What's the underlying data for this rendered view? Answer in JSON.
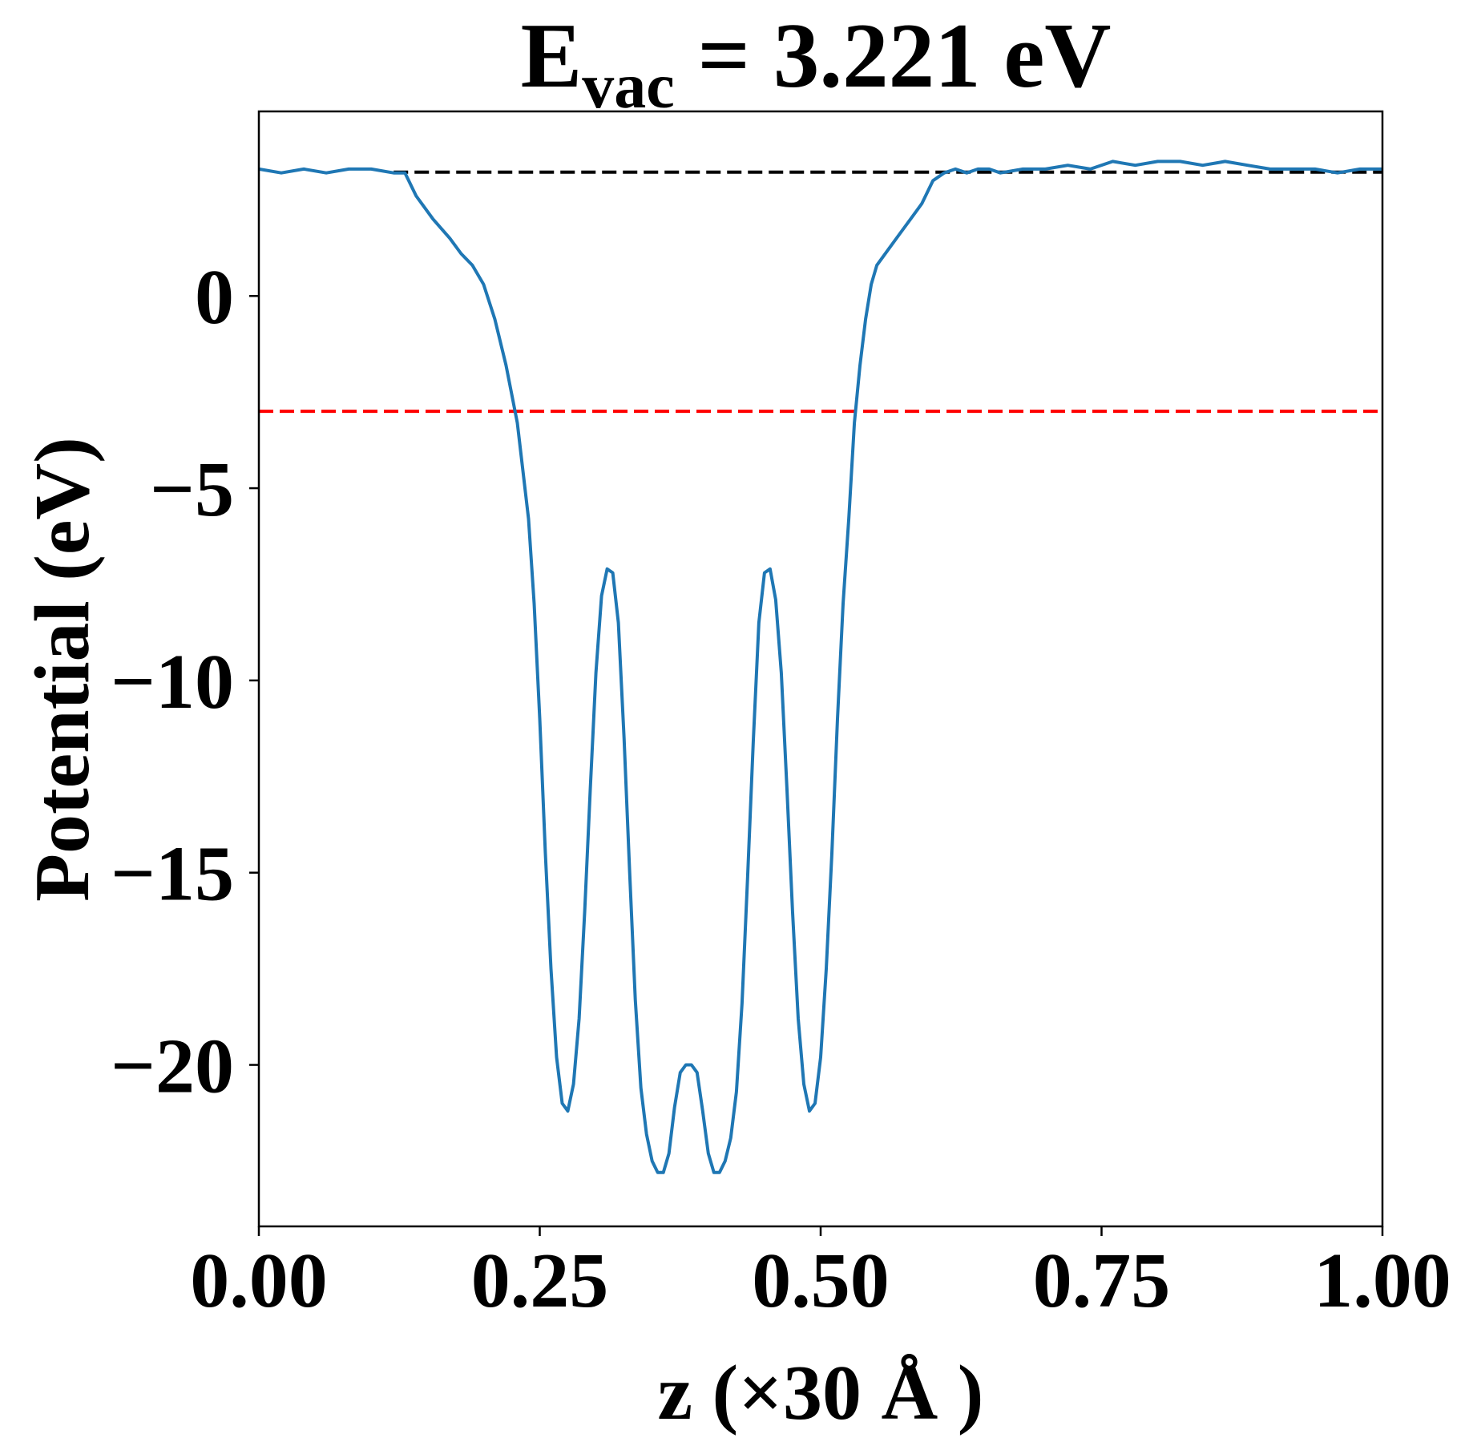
{
  "chart_data": {
    "type": "line",
    "title": {
      "main": "E",
      "subscript": "vac",
      "rest": " = 3.221 eV"
    },
    "xlabel": "z (×30 Å )",
    "ylabel": "Potential (eV)",
    "xlim": [
      0.0,
      1.0
    ],
    "ylim": [
      -24.2,
      4.8
    ],
    "x_ticks": [
      0.0,
      0.25,
      0.5,
      0.75,
      1.0
    ],
    "x_tick_labels": [
      "0.00",
      "0.25",
      "0.50",
      "0.75",
      "1.00"
    ],
    "y_ticks": [
      0,
      -5,
      -10,
      -15,
      -20
    ],
    "y_tick_labels": [
      "0",
      "−5",
      "−10",
      "−15",
      "−20"
    ],
    "grid": false,
    "legend": "none",
    "reference_lines": [
      {
        "orientation": "horizontal",
        "y": 3.221,
        "x_start": 0.12,
        "x_end": 1.0,
        "style": "dashed",
        "color": "#000000"
      },
      {
        "orientation": "horizontal",
        "y": -3.0,
        "x_start": 0.0,
        "x_end": 1.0,
        "style": "dashed",
        "color": "#ff0000"
      }
    ],
    "series": [
      {
        "color": "#1f77b4",
        "x": [
          0.0,
          0.02,
          0.04,
          0.06,
          0.08,
          0.1,
          0.12,
          0.13,
          0.14,
          0.155,
          0.17,
          0.18,
          0.19,
          0.2,
          0.21,
          0.22,
          0.23,
          0.24,
          0.245,
          0.25,
          0.255,
          0.26,
          0.265,
          0.27,
          0.275,
          0.28,
          0.285,
          0.29,
          0.295,
          0.3,
          0.305,
          0.31,
          0.315,
          0.32,
          0.325,
          0.33,
          0.335,
          0.34,
          0.345,
          0.35,
          0.355,
          0.36,
          0.365,
          0.37,
          0.375,
          0.38,
          0.385,
          0.39,
          0.395,
          0.4,
          0.405,
          0.41,
          0.415,
          0.42,
          0.425,
          0.43,
          0.435,
          0.44,
          0.445,
          0.45,
          0.455,
          0.46,
          0.465,
          0.47,
          0.475,
          0.48,
          0.485,
          0.49,
          0.495,
          0.5,
          0.505,
          0.51,
          0.515,
          0.52,
          0.525,
          0.53,
          0.535,
          0.54,
          0.545,
          0.55,
          0.56,
          0.57,
          0.58,
          0.59,
          0.6,
          0.61,
          0.62,
          0.63,
          0.64,
          0.65,
          0.66,
          0.68,
          0.7,
          0.72,
          0.74,
          0.76,
          0.78,
          0.8,
          0.82,
          0.84,
          0.86,
          0.88,
          0.9,
          0.92,
          0.94,
          0.96,
          0.98,
          1.0
        ],
        "y": [
          3.3,
          3.2,
          3.3,
          3.2,
          3.3,
          3.3,
          3.2,
          3.2,
          2.6,
          2.0,
          1.5,
          1.1,
          0.8,
          0.3,
          -0.6,
          -1.8,
          -3.3,
          -5.8,
          -8.0,
          -11.0,
          -14.5,
          -17.5,
          -19.8,
          -21.0,
          -21.2,
          -20.5,
          -18.8,
          -16.0,
          -12.8,
          -9.8,
          -7.8,
          -7.1,
          -7.2,
          -8.5,
          -11.5,
          -15.0,
          -18.3,
          -20.6,
          -21.8,
          -22.5,
          -22.8,
          -22.8,
          -22.3,
          -21.1,
          -20.2,
          -20.0,
          -20.0,
          -20.2,
          -21.2,
          -22.3,
          -22.8,
          -22.8,
          -22.5,
          -21.9,
          -20.7,
          -18.4,
          -15.1,
          -11.6,
          -8.5,
          -7.2,
          -7.1,
          -7.9,
          -9.8,
          -12.8,
          -16.0,
          -18.8,
          -20.5,
          -21.2,
          -21.0,
          -19.8,
          -17.5,
          -14.5,
          -11.0,
          -8.0,
          -5.8,
          -3.3,
          -1.8,
          -0.6,
          0.3,
          0.8,
          1.2,
          1.6,
          2.0,
          2.4,
          3.0,
          3.2,
          3.3,
          3.2,
          3.3,
          3.3,
          3.2,
          3.3,
          3.3,
          3.4,
          3.3,
          3.5,
          3.4,
          3.5,
          3.5,
          3.4,
          3.5,
          3.4,
          3.3,
          3.3,
          3.3,
          3.2,
          3.3,
          3.3
        ]
      }
    ]
  }
}
